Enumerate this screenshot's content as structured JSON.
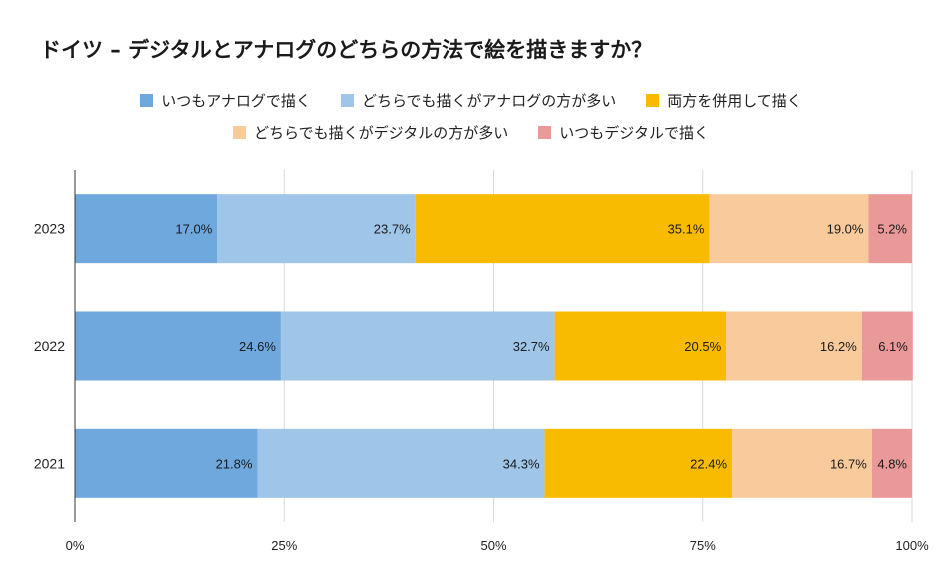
{
  "chart_data": {
    "type": "bar",
    "orientation": "horizontal",
    "stacked": true,
    "title": "ドイツ – デジタルとアナログのどちらの方法で絵を描きますか？",
    "categories": [
      "2023",
      "2022",
      "2021"
    ],
    "series": [
      {
        "name": "いつもアナログで描く",
        "color": "#6fa8dc",
        "values": [
          17.0,
          24.6,
          21.8
        ]
      },
      {
        "name": "どちらでも描くがアナログの方が多い",
        "color": "#9fc5e8",
        "values": [
          23.7,
          32.7,
          34.3
        ]
      },
      {
        "name": "両方を併用して描く",
        "color": "#f9bb00",
        "values": [
          35.1,
          20.5,
          22.4
        ]
      },
      {
        "name": "どちらでも描くがデジタルの方が多い",
        "color": "#f9cb9c",
        "values": [
          19.0,
          16.2,
          16.7
        ]
      },
      {
        "name": "いつもデジタルで描く",
        "color": "#ea9999",
        "values": [
          5.2,
          6.1,
          4.8
        ]
      }
    ],
    "xlim": [
      0,
      100
    ],
    "x_ticks": [
      "0%",
      "25%",
      "50%",
      "75%",
      "100%"
    ],
    "value_suffix": "%",
    "grid": true,
    "legend_position": "top"
  }
}
